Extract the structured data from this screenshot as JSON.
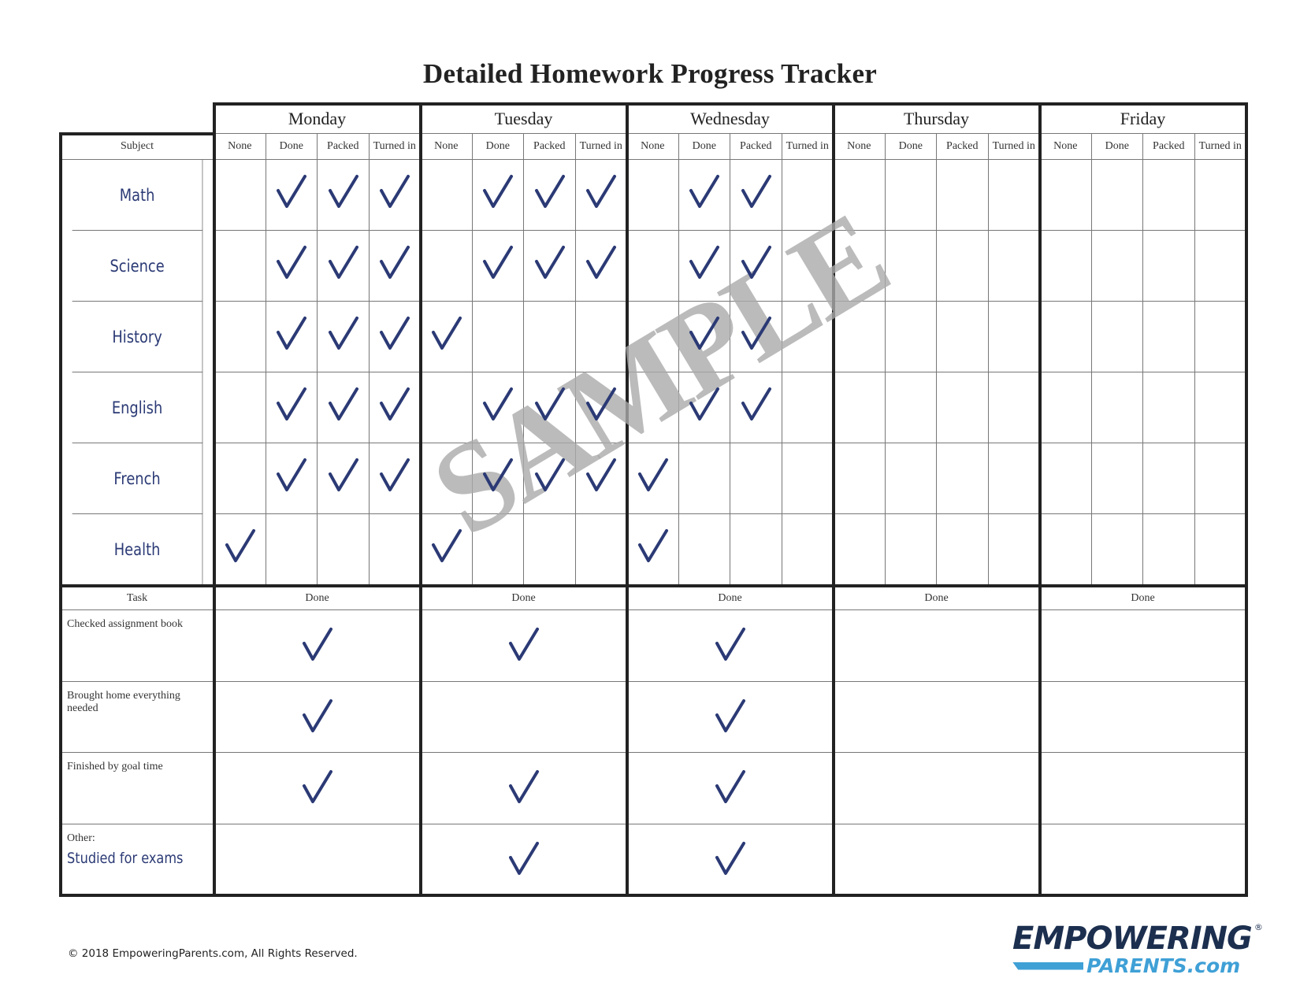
{
  "title": "Detailed Homework Progress Tracker",
  "days": [
    "Monday",
    "Tuesday",
    "Wednesday",
    "Thursday",
    "Friday"
  ],
  "columns": [
    "None",
    "Done",
    "Packed",
    "Turned in"
  ],
  "subject_header": "Subject",
  "subjects": [
    {
      "name": "Math",
      "checks": [
        [
          0,
          1,
          1,
          1
        ],
        [
          0,
          1,
          1,
          1
        ],
        [
          0,
          1,
          1,
          0
        ],
        [
          0,
          0,
          0,
          0
        ],
        [
          0,
          0,
          0,
          0
        ]
      ]
    },
    {
      "name": "Science",
      "checks": [
        [
          0,
          1,
          1,
          1
        ],
        [
          0,
          1,
          1,
          1
        ],
        [
          0,
          1,
          1,
          0
        ],
        [
          0,
          0,
          0,
          0
        ],
        [
          0,
          0,
          0,
          0
        ]
      ]
    },
    {
      "name": "History",
      "checks": [
        [
          0,
          1,
          1,
          1
        ],
        [
          1,
          0,
          0,
          0
        ],
        [
          0,
          1,
          1,
          0
        ],
        [
          0,
          0,
          0,
          0
        ],
        [
          0,
          0,
          0,
          0
        ]
      ]
    },
    {
      "name": "English",
      "checks": [
        [
          0,
          1,
          1,
          1
        ],
        [
          0,
          1,
          1,
          1
        ],
        [
          0,
          1,
          1,
          0
        ],
        [
          0,
          0,
          0,
          0
        ],
        [
          0,
          0,
          0,
          0
        ]
      ]
    },
    {
      "name": "French",
      "checks": [
        [
          0,
          1,
          1,
          1
        ],
        [
          0,
          1,
          1,
          1
        ],
        [
          1,
          0,
          0,
          0
        ],
        [
          0,
          0,
          0,
          0
        ],
        [
          0,
          0,
          0,
          0
        ]
      ]
    },
    {
      "name": "Health",
      "checks": [
        [
          1,
          0,
          0,
          0
        ],
        [
          1,
          0,
          0,
          0
        ],
        [
          1,
          0,
          0,
          0
        ],
        [
          0,
          0,
          0,
          0
        ],
        [
          0,
          0,
          0,
          0
        ]
      ]
    }
  ],
  "task_header": "Task",
  "task_done_label": "Done",
  "tasks": [
    {
      "label": "Checked assignment book",
      "done": [
        1,
        1,
        1,
        0,
        0
      ]
    },
    {
      "label": "Brought home everything needed",
      "done": [
        1,
        0,
        1,
        0,
        0
      ]
    },
    {
      "label": "Finished by goal time",
      "done": [
        1,
        1,
        1,
        0,
        0
      ]
    },
    {
      "label": "Other:",
      "value": "Studied for exams",
      "done": [
        0,
        1,
        1,
        0,
        0
      ]
    }
  ],
  "watermark": "SAMPLE",
  "footer": "© 2018 EmpoweringParents.com, All Rights Reserved.",
  "logo": {
    "line1": "EMPOWERING",
    "line2": "PARENTS.com"
  },
  "colors": {
    "ink": "#2b3a75",
    "logo_dark": "#1c2f4f",
    "logo_light": "#3fa0d6",
    "watermark": "#bbbbbb"
  }
}
